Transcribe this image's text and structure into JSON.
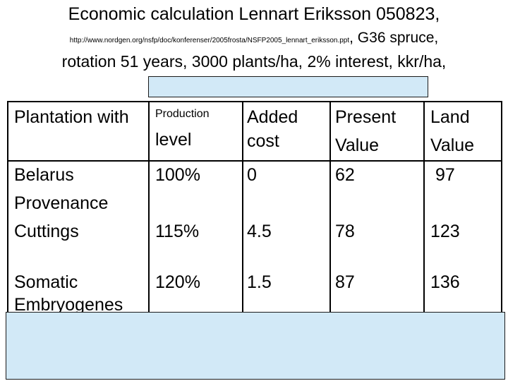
{
  "title": {
    "line1": "Economic calculation Lennart Eriksson 050823,",
    "url": "http://www.nordgen.org/nsfp/doc/konferenser/2005frosta/NSFP2005_lennart_eriksson.ppt",
    "line2_suffix": ", G36 spruce,",
    "line3": "rotation 51 years, 3000 plants/ha, 2% interest, kkr/ha,"
  },
  "table": {
    "headers": {
      "col1": "Plantation with",
      "col2_top": "Production",
      "col2_bottom": "level",
      "col3_top": "Added",
      "col3_bottom": "cost",
      "col4_top": "Present",
      "col4_bottom": "Value",
      "col5_top": "Land",
      "col5_bottom": "Value"
    },
    "rows": [
      {
        "label_lines": [
          "Belarus",
          "Provenance"
        ],
        "production": "100%",
        "added_cost": "0",
        "present_value": "62",
        "land_value": "97"
      },
      {
        "label_lines": [
          "Cuttings"
        ],
        "production": "115%",
        "added_cost": "4.5",
        "present_value": "78",
        "land_value": "123"
      },
      {
        "label_lines": [
          "Somatic",
          "Embryogenes"
        ],
        "production": "120%",
        "added_cost": "1.5",
        "present_value": "87",
        "land_value": "136"
      }
    ]
  },
  "colors": {
    "overlay_fill": "#d2e9f7",
    "lines": "#000000"
  }
}
